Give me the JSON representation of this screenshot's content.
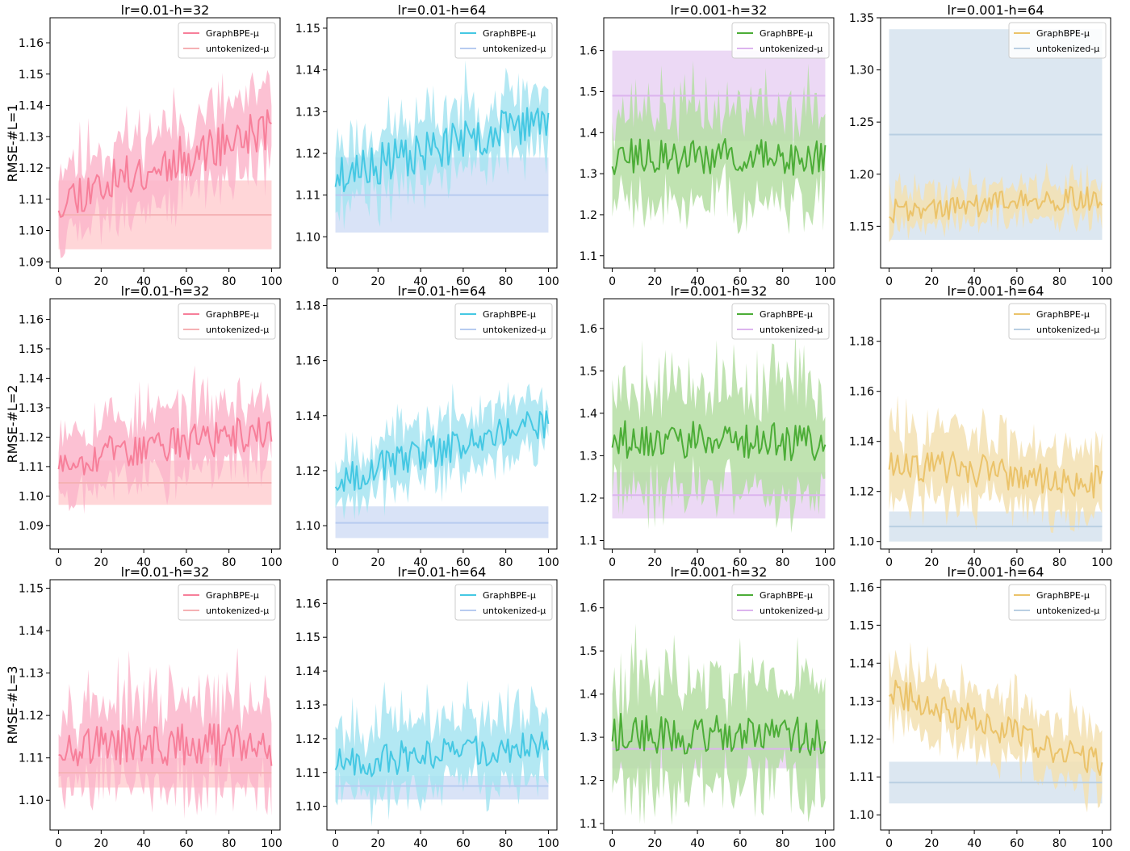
{
  "figure": {
    "row_labels": [
      "RMSE-#L=1",
      "RMSE-#L=2",
      "RMSE-#L=3"
    ],
    "column_titles": [
      "lr=0.01-h=32",
      "lr=0.01-h=64",
      "lr=0.001-h=32",
      "lr=0.001-h=64"
    ],
    "legend_labels": [
      "GraphBPE-μ",
      "untokenized-μ"
    ],
    "x_ticks": [
      "0",
      "20",
      "40",
      "60",
      "80",
      "100"
    ],
    "column_colors": [
      {
        "line": "#f77f9a",
        "band": "#fbb6cb",
        "base_line": "#f5b1b4",
        "base_band": "#ffd6d8"
      },
      {
        "line": "#45c8e3",
        "band": "#a6e4f1",
        "base_line": "#b7cbf0",
        "base_band": "#d9e3f7"
      },
      {
        "line": "#4cad37",
        "band": "#b5dea3",
        "base_line": "#dcb4ee",
        "base_band": "#ecd9f5"
      },
      {
        "line": "#ebc36a",
        "band": "#f3e0b1",
        "base_line": "#b9cfe2",
        "base_band": "#dce7f1"
      }
    ]
  },
  "chart_data": [
    {
      "type": "line",
      "row": 0,
      "col": 0,
      "title": "lr=0.01-h=32",
      "ylabel": "RMSE-#L=1",
      "xlim": [
        -4,
        104
      ],
      "ylim": [
        1.088,
        1.168
      ],
      "y_ticks": [
        "1.09",
        "1.10",
        "1.11",
        "1.12",
        "1.13",
        "1.14",
        "1.15",
        "1.16"
      ],
      "y_tick_values": [
        1.09,
        1.1,
        1.11,
        1.12,
        1.13,
        1.14,
        1.15,
        1.16
      ],
      "series": [
        {
          "name": "GraphBPE-μ",
          "start": 1.11,
          "end": 1.133,
          "noise": 0.007,
          "band": 0.012,
          "seed": 11
        },
        {
          "name": "untokenized-μ",
          "value": 1.105,
          "band_low": 1.094,
          "band_high": 1.116
        }
      ]
    },
    {
      "type": "line",
      "row": 0,
      "col": 1,
      "title": "lr=0.01-h=64",
      "ylabel": "",
      "xlim": [
        -4,
        104
      ],
      "ylim": [
        1.0925,
        1.1525
      ],
      "y_ticks": [
        "1.10",
        "1.11",
        "1.12",
        "1.13",
        "1.14",
        "1.15"
      ],
      "y_tick_values": [
        1.1,
        1.11,
        1.12,
        1.13,
        1.14,
        1.15
      ],
      "series": [
        {
          "name": "GraphBPE-μ",
          "start": 1.1145,
          "end": 1.1285,
          "noise": 0.005,
          "band": 0.008,
          "seed": 23
        },
        {
          "name": "untokenized-μ",
          "value": 1.11,
          "band_low": 1.101,
          "band_high": 1.119
        }
      ]
    },
    {
      "type": "line",
      "row": 0,
      "col": 2,
      "title": "lr=0.001-h=32",
      "ylabel": "",
      "xlim": [
        -4,
        104
      ],
      "ylim": [
        1.07,
        1.68
      ],
      "y_ticks": [
        "1.1",
        "1.2",
        "1.3",
        "1.4",
        "1.5",
        "1.6"
      ],
      "y_tick_values": [
        1.1,
        1.2,
        1.3,
        1.4,
        1.5,
        1.6
      ],
      "series": [
        {
          "name": "GraphBPE-μ",
          "start": 1.34,
          "end": 1.34,
          "noise": 0.045,
          "band": 0.12,
          "seed": 37
        },
        {
          "name": "untokenized-μ",
          "value": 1.49,
          "band_low": 1.38,
          "band_high": 1.6
        }
      ]
    },
    {
      "type": "line",
      "row": 0,
      "col": 3,
      "title": "lr=0.001-h=64",
      "ylabel": "",
      "xlim": [
        -4,
        104
      ],
      "ylim": [
        1.11,
        1.35
      ],
      "y_ticks": [
        "1.15",
        "1.20",
        "1.25",
        "1.30",
        "1.35"
      ],
      "y_tick_values": [
        1.15,
        1.2,
        1.25,
        1.3,
        1.35
      ],
      "series": [
        {
          "name": "GraphBPE-μ",
          "start": 1.165,
          "end": 1.178,
          "noise": 0.012,
          "band": 0.018,
          "seed": 41
        },
        {
          "name": "untokenized-μ",
          "value": 1.238,
          "band_low": 1.137,
          "band_high": 1.339
        }
      ]
    },
    {
      "type": "line",
      "row": 1,
      "col": 0,
      "title": "lr=0.01-h=32",
      "ylabel": "RMSE-#L=2",
      "xlim": [
        -4,
        104
      ],
      "ylim": [
        1.082,
        1.167
      ],
      "y_ticks": [
        "1.09",
        "1.10",
        "1.11",
        "1.12",
        "1.13",
        "1.14",
        "1.15",
        "1.16"
      ],
      "y_tick_values": [
        1.09,
        1.1,
        1.11,
        1.12,
        1.13,
        1.14,
        1.15,
        1.16
      ],
      "series": [
        {
          "name": "GraphBPE-μ",
          "start": 1.112,
          "end": 1.122,
          "noise": 0.006,
          "band": 0.012,
          "seed": 53
        },
        {
          "name": "untokenized-μ",
          "value": 1.1045,
          "band_low": 1.097,
          "band_high": 1.112
        }
      ]
    },
    {
      "type": "line",
      "row": 1,
      "col": 1,
      "title": "lr=0.01-h=64",
      "ylabel": "",
      "xlim": [
        -4,
        104
      ],
      "ylim": [
        1.0915,
        1.1825
      ],
      "y_ticks": [
        "1.10",
        "1.12",
        "1.14",
        "1.16",
        "1.18"
      ],
      "y_tick_values": [
        1.1,
        1.12,
        1.14,
        1.16,
        1.18
      ],
      "series": [
        {
          "name": "GraphBPE-μ",
          "start": 1.117,
          "end": 1.138,
          "noise": 0.006,
          "band": 0.01,
          "seed": 67
        },
        {
          "name": "untokenized-μ",
          "value": 1.101,
          "band_low": 1.0955,
          "band_high": 1.107
        }
      ]
    },
    {
      "type": "line",
      "row": 1,
      "col": 2,
      "title": "lr=0.001-h=32",
      "ylabel": "",
      "xlim": [
        -4,
        104
      ],
      "ylim": [
        1.08,
        1.67
      ],
      "y_ticks": [
        "1.1",
        "1.2",
        "1.3",
        "1.4",
        "1.5",
        "1.6"
      ],
      "y_tick_values": [
        1.1,
        1.2,
        1.3,
        1.4,
        1.5,
        1.6
      ],
      "series": [
        {
          "name": "GraphBPE-μ",
          "start": 1.34,
          "end": 1.33,
          "noise": 0.045,
          "band": 0.14,
          "seed": 79
        },
        {
          "name": "untokenized-μ",
          "value": 1.207,
          "band_low": 1.152,
          "band_high": 1.261
        }
      ]
    },
    {
      "type": "line",
      "row": 1,
      "col": 3,
      "title": "lr=0.001-h=64",
      "ylabel": "",
      "xlim": [
        -4,
        104
      ],
      "ylim": [
        1.097,
        1.197
      ],
      "y_ticks": [
        "1.10",
        "1.12",
        "1.14",
        "1.16",
        "1.18"
      ],
      "y_tick_values": [
        1.1,
        1.12,
        1.14,
        1.16,
        1.18
      ],
      "series": [
        {
          "name": "GraphBPE-μ",
          "start": 1.132,
          "end": 1.124,
          "noise": 0.007,
          "band": 0.014,
          "seed": 83
        },
        {
          "name": "untokenized-μ",
          "value": 1.106,
          "band_low": 1.1,
          "band_high": 1.112
        }
      ]
    },
    {
      "type": "line",
      "row": 2,
      "col": 0,
      "title": "lr=0.01-h=32",
      "ylabel": "RMSE-#L=3",
      "xlim": [
        -4,
        104
      ],
      "ylim": [
        1.093,
        1.152
      ],
      "y_ticks": [
        "1.10",
        "1.11",
        "1.12",
        "1.13",
        "1.14",
        "1.15"
      ],
      "y_tick_values": [
        1.1,
        1.11,
        1.12,
        1.13,
        1.14,
        1.15
      ],
      "series": [
        {
          "name": "GraphBPE-μ",
          "start": 1.113,
          "end": 1.113,
          "noise": 0.005,
          "band": 0.01,
          "seed": 97
        },
        {
          "name": "untokenized-μ",
          "value": 1.1065,
          "band_low": 1.103,
          "band_high": 1.11
        }
      ]
    },
    {
      "type": "line",
      "row": 2,
      "col": 1,
      "title": "lr=0.01-h=64",
      "ylabel": "",
      "xlim": [
        -4,
        104
      ],
      "ylim": [
        1.093,
        1.167
      ],
      "y_ticks": [
        "1.10",
        "1.11",
        "1.12",
        "1.13",
        "1.14",
        "1.15",
        "1.16"
      ],
      "y_tick_values": [
        1.1,
        1.11,
        1.12,
        1.13,
        1.14,
        1.15,
        1.16
      ],
      "series": [
        {
          "name": "GraphBPE-μ",
          "start": 1.113,
          "end": 1.118,
          "noise": 0.005,
          "band": 0.011,
          "seed": 101
        },
        {
          "name": "untokenized-μ",
          "value": 1.106,
          "band_low": 1.102,
          "band_high": 1.109
        }
      ]
    },
    {
      "type": "line",
      "row": 2,
      "col": 2,
      "title": "lr=0.001-h=32",
      "ylabel": "",
      "xlim": [
        -4,
        104
      ],
      "ylim": [
        1.085,
        1.665
      ],
      "y_ticks": [
        "1.1",
        "1.2",
        "1.3",
        "1.4",
        "1.5",
        "1.6"
      ],
      "y_tick_values": [
        1.1,
        1.2,
        1.3,
        1.4,
        1.5,
        1.6
      ],
      "series": [
        {
          "name": "GraphBPE-μ",
          "start": 1.31,
          "end": 1.3,
          "noise": 0.045,
          "band": 0.13,
          "seed": 113
        },
        {
          "name": "untokenized-μ",
          "value": 1.273,
          "band_low": 1.228,
          "band_high": 1.318
        }
      ]
    },
    {
      "type": "line",
      "row": 2,
      "col": 3,
      "title": "lr=0.001-h=64",
      "ylabel": "",
      "xlim": [
        -4,
        104
      ],
      "ylim": [
        1.096,
        1.162
      ],
      "y_ticks": [
        "1.10",
        "1.11",
        "1.12",
        "1.13",
        "1.14",
        "1.15",
        "1.16"
      ],
      "y_tick_values": [
        1.1,
        1.11,
        1.12,
        1.13,
        1.14,
        1.15,
        1.16
      ],
      "series": [
        {
          "name": "GraphBPE-μ",
          "start": 1.133,
          "end": 1.113,
          "noise": 0.004,
          "band": 0.008,
          "seed": 127
        },
        {
          "name": "untokenized-μ",
          "value": 1.1085,
          "band_low": 1.103,
          "band_high": 1.114
        }
      ]
    }
  ]
}
